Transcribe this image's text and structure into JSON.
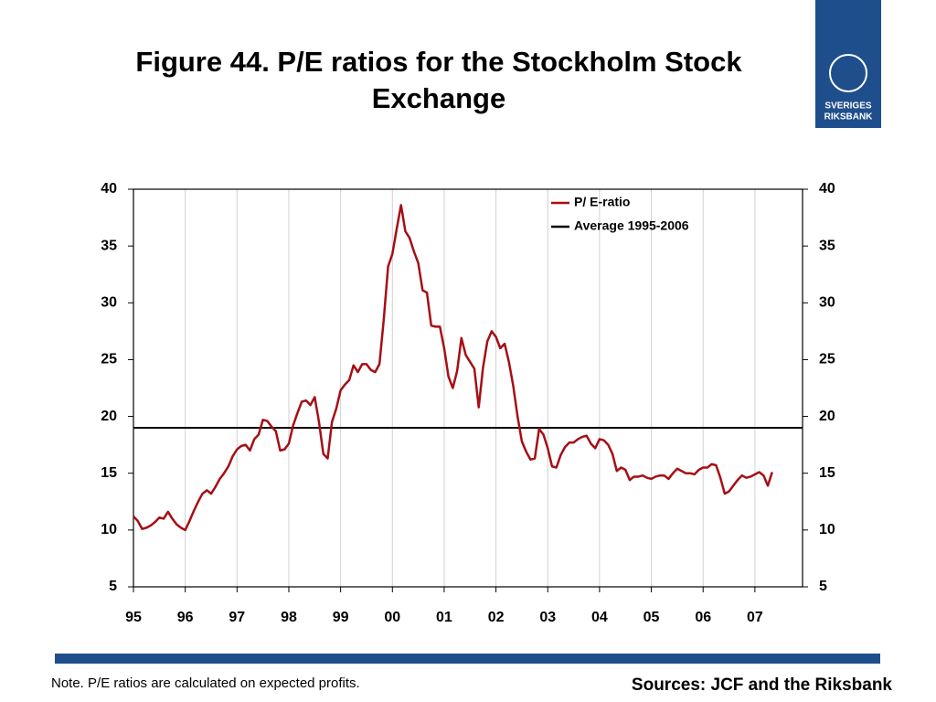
{
  "chart_data": {
    "type": "line",
    "title": "Figure 44. P/E ratios for the Stockholm Stock Exchange",
    "note": "Note. P/E ratios are calculated on expected profits.",
    "source": "Sources: JCF and the Riksbank",
    "logo": {
      "line1": "SVERIGES",
      "line2": "RIKSBANK"
    },
    "x": [
      1995,
      1995.083,
      1995.167,
      1995.25,
      1995.333,
      1995.417,
      1995.5,
      1995.583,
      1995.667,
      1995.75,
      1995.833,
      1995.917,
      1996,
      1996.083,
      1996.167,
      1996.25,
      1996.333,
      1996.417,
      1996.5,
      1996.583,
      1996.667,
      1996.75,
      1996.833,
      1996.917,
      1997,
      1997.083,
      1997.167,
      1997.25,
      1997.333,
      1997.417,
      1997.5,
      1997.583,
      1997.667,
      1997.75,
      1997.833,
      1997.917,
      1998,
      1998.083,
      1998.167,
      1998.25,
      1998.333,
      1998.417,
      1998.5,
      1998.583,
      1998.667,
      1998.75,
      1998.833,
      1998.917,
      1999,
      1999.083,
      1999.167,
      1999.25,
      1999.333,
      1999.417,
      1999.5,
      1999.583,
      1999.667,
      1999.75,
      1999.833,
      1999.917,
      2000,
      2000.083,
      2000.167,
      2000.25,
      2000.333,
      2000.417,
      2000.5,
      2000.583,
      2000.667,
      2000.75,
      2000.833,
      2000.917,
      2001,
      2001.083,
      2001.167,
      2001.25,
      2001.333,
      2001.417,
      2001.5,
      2001.583,
      2001.667,
      2001.75,
      2001.833,
      2001.917,
      2002,
      2002.083,
      2002.167,
      2002.25,
      2002.333,
      2002.417,
      2002.5,
      2002.583,
      2002.667,
      2002.75,
      2002.833,
      2002.917,
      2003,
      2003.083,
      2003.167,
      2003.25,
      2003.333,
      2003.417,
      2003.5,
      2003.583,
      2003.667,
      2003.75,
      2003.833,
      2003.917,
      2004,
      2004.083,
      2004.167,
      2004.25,
      2004.333,
      2004.417,
      2004.5,
      2004.583,
      2004.667,
      2004.75,
      2004.833,
      2004.917,
      2005,
      2005.083,
      2005.167,
      2005.25,
      2005.333,
      2005.417,
      2005.5,
      2005.583,
      2005.667,
      2005.75,
      2005.833,
      2005.917,
      2006,
      2006.083,
      2006.167,
      2006.25,
      2006.333,
      2006.417,
      2006.5,
      2006.583,
      2006.667,
      2006.75,
      2006.833,
      2006.917,
      2007,
      2007.083,
      2007.167,
      2007.25,
      2007.333
    ],
    "series": [
      {
        "name": "P/ E-ratio",
        "color": "#a50f15",
        "values": [
          11.2,
          10.8,
          10.1,
          10.2,
          10.4,
          10.7,
          11.1,
          11.0,
          11.6,
          11.0,
          10.5,
          10.2,
          10.0,
          10.8,
          11.7,
          12.5,
          13.2,
          13.5,
          13.2,
          13.8,
          14.5,
          15.0,
          15.6,
          16.5,
          17.1,
          17.4,
          17.5,
          17.0,
          18.0,
          18.4,
          19.7,
          19.6,
          19.1,
          18.7,
          17.0,
          17.1,
          17.6,
          19.2,
          20.3,
          21.3,
          21.4,
          21.0,
          21.7,
          19.5,
          16.7,
          16.3,
          19.5,
          20.7,
          22.3,
          22.8,
          23.2,
          24.5,
          23.9,
          24.6,
          24.6,
          24.1,
          23.9,
          24.6,
          28.5,
          33.2,
          34.3,
          36.5,
          38.6,
          36.3,
          35.7,
          34.5,
          33.5,
          31.1,
          30.9,
          28.0,
          27.9,
          27.9,
          26.0,
          23.5,
          22.5,
          24.0,
          26.9,
          25.4,
          24.8,
          24.2,
          20.8,
          24.3,
          26.6,
          27.5,
          27.0,
          26.0,
          26.4,
          24.8,
          22.7,
          20.0,
          17.8,
          16.9,
          16.2,
          16.3,
          18.9,
          18.4,
          17.2,
          15.6,
          15.5,
          16.6,
          17.3,
          17.7,
          17.7,
          18.0,
          18.2,
          18.3,
          17.6,
          17.2,
          18.0,
          17.9,
          17.5,
          16.7,
          15.2,
          15.5,
          15.3,
          14.4,
          14.7,
          14.7,
          14.8,
          14.6,
          14.5,
          14.7,
          14.8,
          14.8,
          14.5,
          15.0,
          15.4,
          15.2,
          15.0,
          15.0,
          14.9,
          15.3,
          15.5,
          15.5,
          15.8,
          15.7,
          14.6,
          13.2,
          13.4,
          13.9,
          14.4,
          14.8,
          14.6,
          14.7,
          14.9,
          15.1,
          14.8,
          13.9,
          15.1
        ]
      }
    ],
    "average": {
      "name": "Average 1995-2006",
      "value": 19,
      "color": "#000000"
    },
    "xlim": [
      1995,
      2007.92
    ],
    "xticks": [
      {
        "value": 1995,
        "label": "95"
      },
      {
        "value": 1996,
        "label": "96"
      },
      {
        "value": 1997,
        "label": "97"
      },
      {
        "value": 1998,
        "label": "98"
      },
      {
        "value": 1999,
        "label": "99"
      },
      {
        "value": 2000,
        "label": "00"
      },
      {
        "value": 2001,
        "label": "01"
      },
      {
        "value": 2002,
        "label": "02"
      },
      {
        "value": 2003,
        "label": "03"
      },
      {
        "value": 2004,
        "label": "04"
      },
      {
        "value": 2005,
        "label": "05"
      },
      {
        "value": 2006,
        "label": "06"
      },
      {
        "value": 2007,
        "label": "07"
      }
    ],
    "ylim": [
      5,
      40
    ],
    "yticks": [
      5,
      10,
      15,
      20,
      25,
      30,
      35,
      40
    ],
    "y2lim": [
      5,
      40
    ],
    "y2ticks": [
      5,
      10,
      15,
      20,
      25,
      30,
      35,
      40
    ],
    "grid": true,
    "legend": "upper right"
  }
}
